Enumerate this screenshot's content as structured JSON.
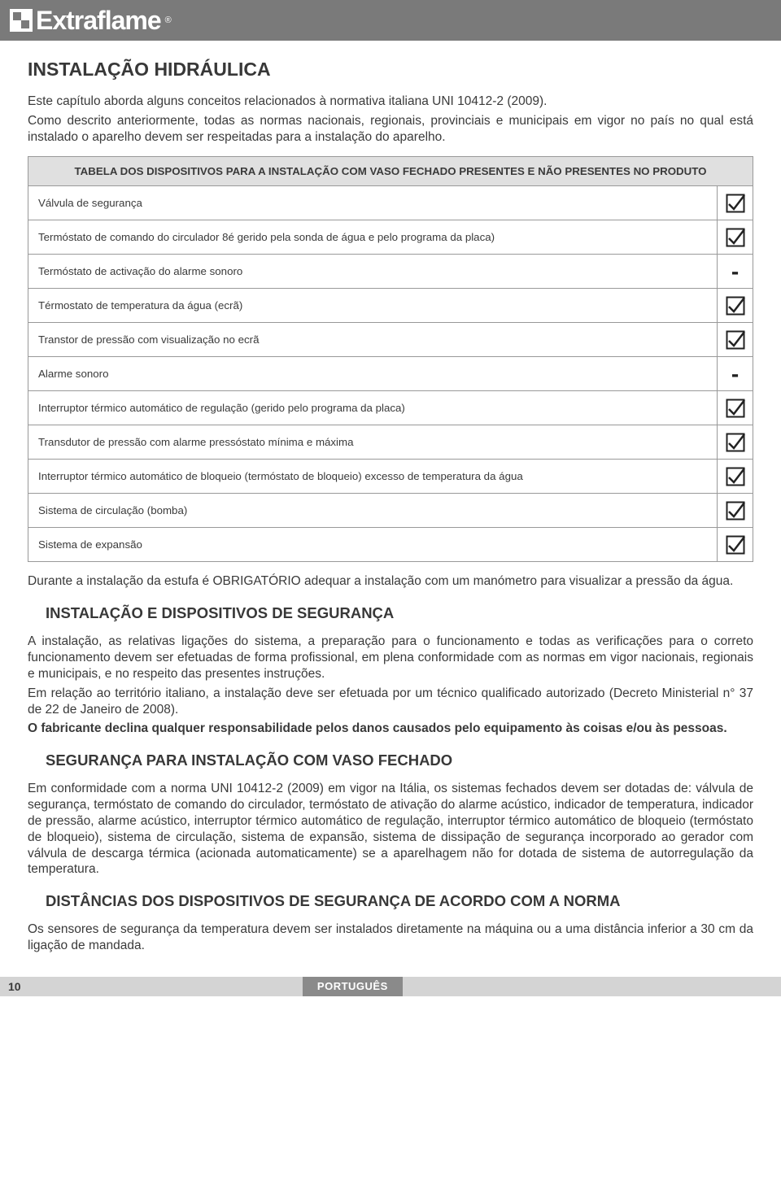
{
  "brand": {
    "name": "Extraflame",
    "reg": "®"
  },
  "title_h1": "INSTALAÇÃO HIDRÁULICA",
  "intro_p1": "Este capítulo aborda alguns conceitos relacionados à normativa italiana UNI 10412-2 (2009).",
  "intro_p2": "Como descrito anteriormente, todas as normas nacionais, regionais, provinciais e municipais em vigor no país no qual está instalado o aparelho devem ser respeitadas para a instalação do aparelho.",
  "table_header": "TABELA DOS DISPOSITIVOS PARA A INSTALAÇÃO COM VASO FECHADO PRESENTES E NÃO PRESENTES NO PRODUTO",
  "table_rows": [
    {
      "label": "Válvula de segurança",
      "mark": "check"
    },
    {
      "label": "Termóstato de comando do circulador 8é gerido pela sonda de água e pelo programa da placa)",
      "mark": "check"
    },
    {
      "label": "Termóstato de activação do alarme sonoro",
      "mark": "dash"
    },
    {
      "label": "Térmostato de temperatura da água (ecrã)",
      "mark": "check"
    },
    {
      "label": "Transtor de pressão com visualização no ecrã",
      "mark": "check"
    },
    {
      "label": "Alarme sonoro",
      "mark": "dash"
    },
    {
      "label": "Interruptor térmico automático de regulação (gerido pelo programa da placa)",
      "mark": "check"
    },
    {
      "label": "Transdutor de pressão com alarme pressóstato mínima e máxima",
      "mark": "check"
    },
    {
      "label": "Interruptor térmico automático de bloqueio (termóstato de bloqueio) excesso de temperatura da água",
      "mark": "check"
    },
    {
      "label": "Sistema de circulação (bomba)",
      "mark": "check"
    },
    {
      "label": "Sistema de expansão",
      "mark": "check"
    }
  ],
  "post_table": "Durante a instalação da estufa é OBRIGATÓRIO adequar a instalação com um manómetro para visualizar a pressão da água.",
  "h2_1": "INSTALAÇÃO E DISPOSITIVOS DE SEGURANÇA",
  "sec1_p1": "A instalação, as relativas ligações do sistema, a preparação para o funcionamento e todas as verificações para o correto funcionamento devem ser efetuadas de forma profissional, em plena conformidade com as normas em vigor nacionais, regionais e municipais, e no respeito das presentes instruções.",
  "sec1_p2": "Em relação ao território italiano, a instalação deve ser efetuada por um técnico qualificado autorizado (Decreto Ministerial n° 37 de 22 de Janeiro de 2008).",
  "sec1_p3": "O fabricante declina qualquer responsabilidade pelos danos causados pelo equipamento às coisas e/ou às pessoas.",
  "h2_2": "SEGURANÇA PARA INSTALAÇÃO COM VASO FECHADO",
  "sec2_p1": "Em conformidade com a norma UNI 10412-2 (2009) em vigor na Itália, os sistemas fechados devem ser dotadas de: válvula de segurança, termóstato de comando do circulador, termóstato de ativação do alarme acústico, indicador de temperatura, indicador de pressão, alarme acústico, interruptor térmico automático de regulação, interruptor térmico automático de bloqueio (termóstato de bloqueio), sistema de circulação, sistema de expansão, sistema de dissipação de segurança incorporado ao gerador com válvula de descarga térmica (acionada automaticamente) se a aparelhagem não for dotada de sistema de autorregulação da temperatura.",
  "h2_3": "DISTÂNCIAS DOS DISPOSITIVOS DE SEGURANÇA DE ACORDO COM A NORMA",
  "sec3_p1": " Os sensores de segurança da temperatura devem ser instalados diretamente na máquina ou a uma distância inferior a 30 cm da ligação de mandada.",
  "footer": {
    "page": "10",
    "lang": "PORTUGUÊS"
  },
  "styles": {
    "check_stroke": "#222222",
    "check_box_size": 24
  }
}
